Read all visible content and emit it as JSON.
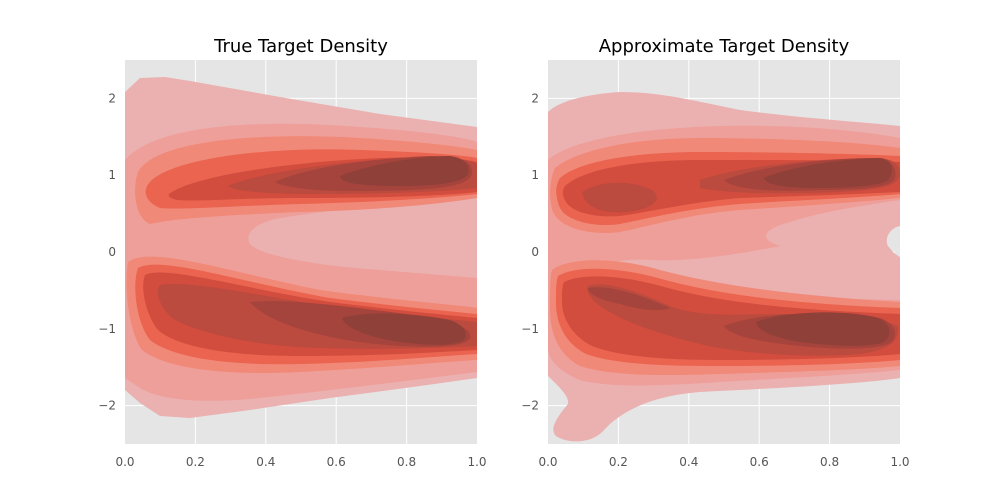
{
  "chart_data": [
    {
      "type": "kde-contour",
      "title": "True Target Density",
      "xlim": [
        0.0,
        1.0
      ],
      "ylim": [
        -2.5,
        2.5
      ],
      "xticks": [
        "0.0",
        "0.2",
        "0.4",
        "0.6",
        "0.8",
        "1.0"
      ],
      "yticks": [
        "2",
        "1",
        "0",
        "−1",
        "−2"
      ],
      "grid": true,
      "levels": 8,
      "modes": [
        {
          "name": "upper-branch",
          "centerline": [
            [
              0.0,
              0.35
            ],
            [
              0.1,
              0.65
            ],
            [
              0.3,
              0.85
            ],
            [
              0.6,
              0.98
            ],
            [
              0.85,
              1.02
            ],
            [
              1.0,
              1.02
            ]
          ],
          "peak_x": 0.85
        },
        {
          "name": "lower-branch",
          "centerline": [
            [
              0.0,
              -0.35
            ],
            [
              0.1,
              -0.5
            ],
            [
              0.3,
              -0.75
            ],
            [
              0.6,
              -0.92
            ],
            [
              0.85,
              -1.02
            ],
            [
              1.0,
              -1.02
            ]
          ],
          "peak_x": 0.85
        }
      ]
    },
    {
      "type": "kde-contour",
      "title": "Approximate Target Density",
      "xlim": [
        0.0,
        1.0
      ],
      "ylim": [
        -2.5,
        2.5
      ],
      "xticks": [
        "0.0",
        "0.2",
        "0.4",
        "0.6",
        "0.8",
        "1.0"
      ],
      "yticks": [
        "2",
        "1",
        "0",
        "−1",
        "−2"
      ],
      "grid": true,
      "levels": 8,
      "modes": [
        {
          "name": "upper-branch",
          "centerline": [
            [
              0.0,
              0.55
            ],
            [
              0.15,
              0.72
            ],
            [
              0.35,
              0.85
            ],
            [
              0.6,
              0.98
            ],
            [
              0.85,
              1.02
            ],
            [
              1.0,
              1.0
            ]
          ],
          "peak_x": 0.85
        },
        {
          "name": "lower-branch",
          "centerline": [
            [
              0.0,
              -0.45
            ],
            [
              0.2,
              -0.55
            ],
            [
              0.4,
              -0.8
            ],
            [
              0.65,
              -0.92
            ],
            [
              0.85,
              -1.02
            ],
            [
              1.0,
              -1.0
            ]
          ],
          "peak_x": 0.8
        }
      ]
    }
  ]
}
